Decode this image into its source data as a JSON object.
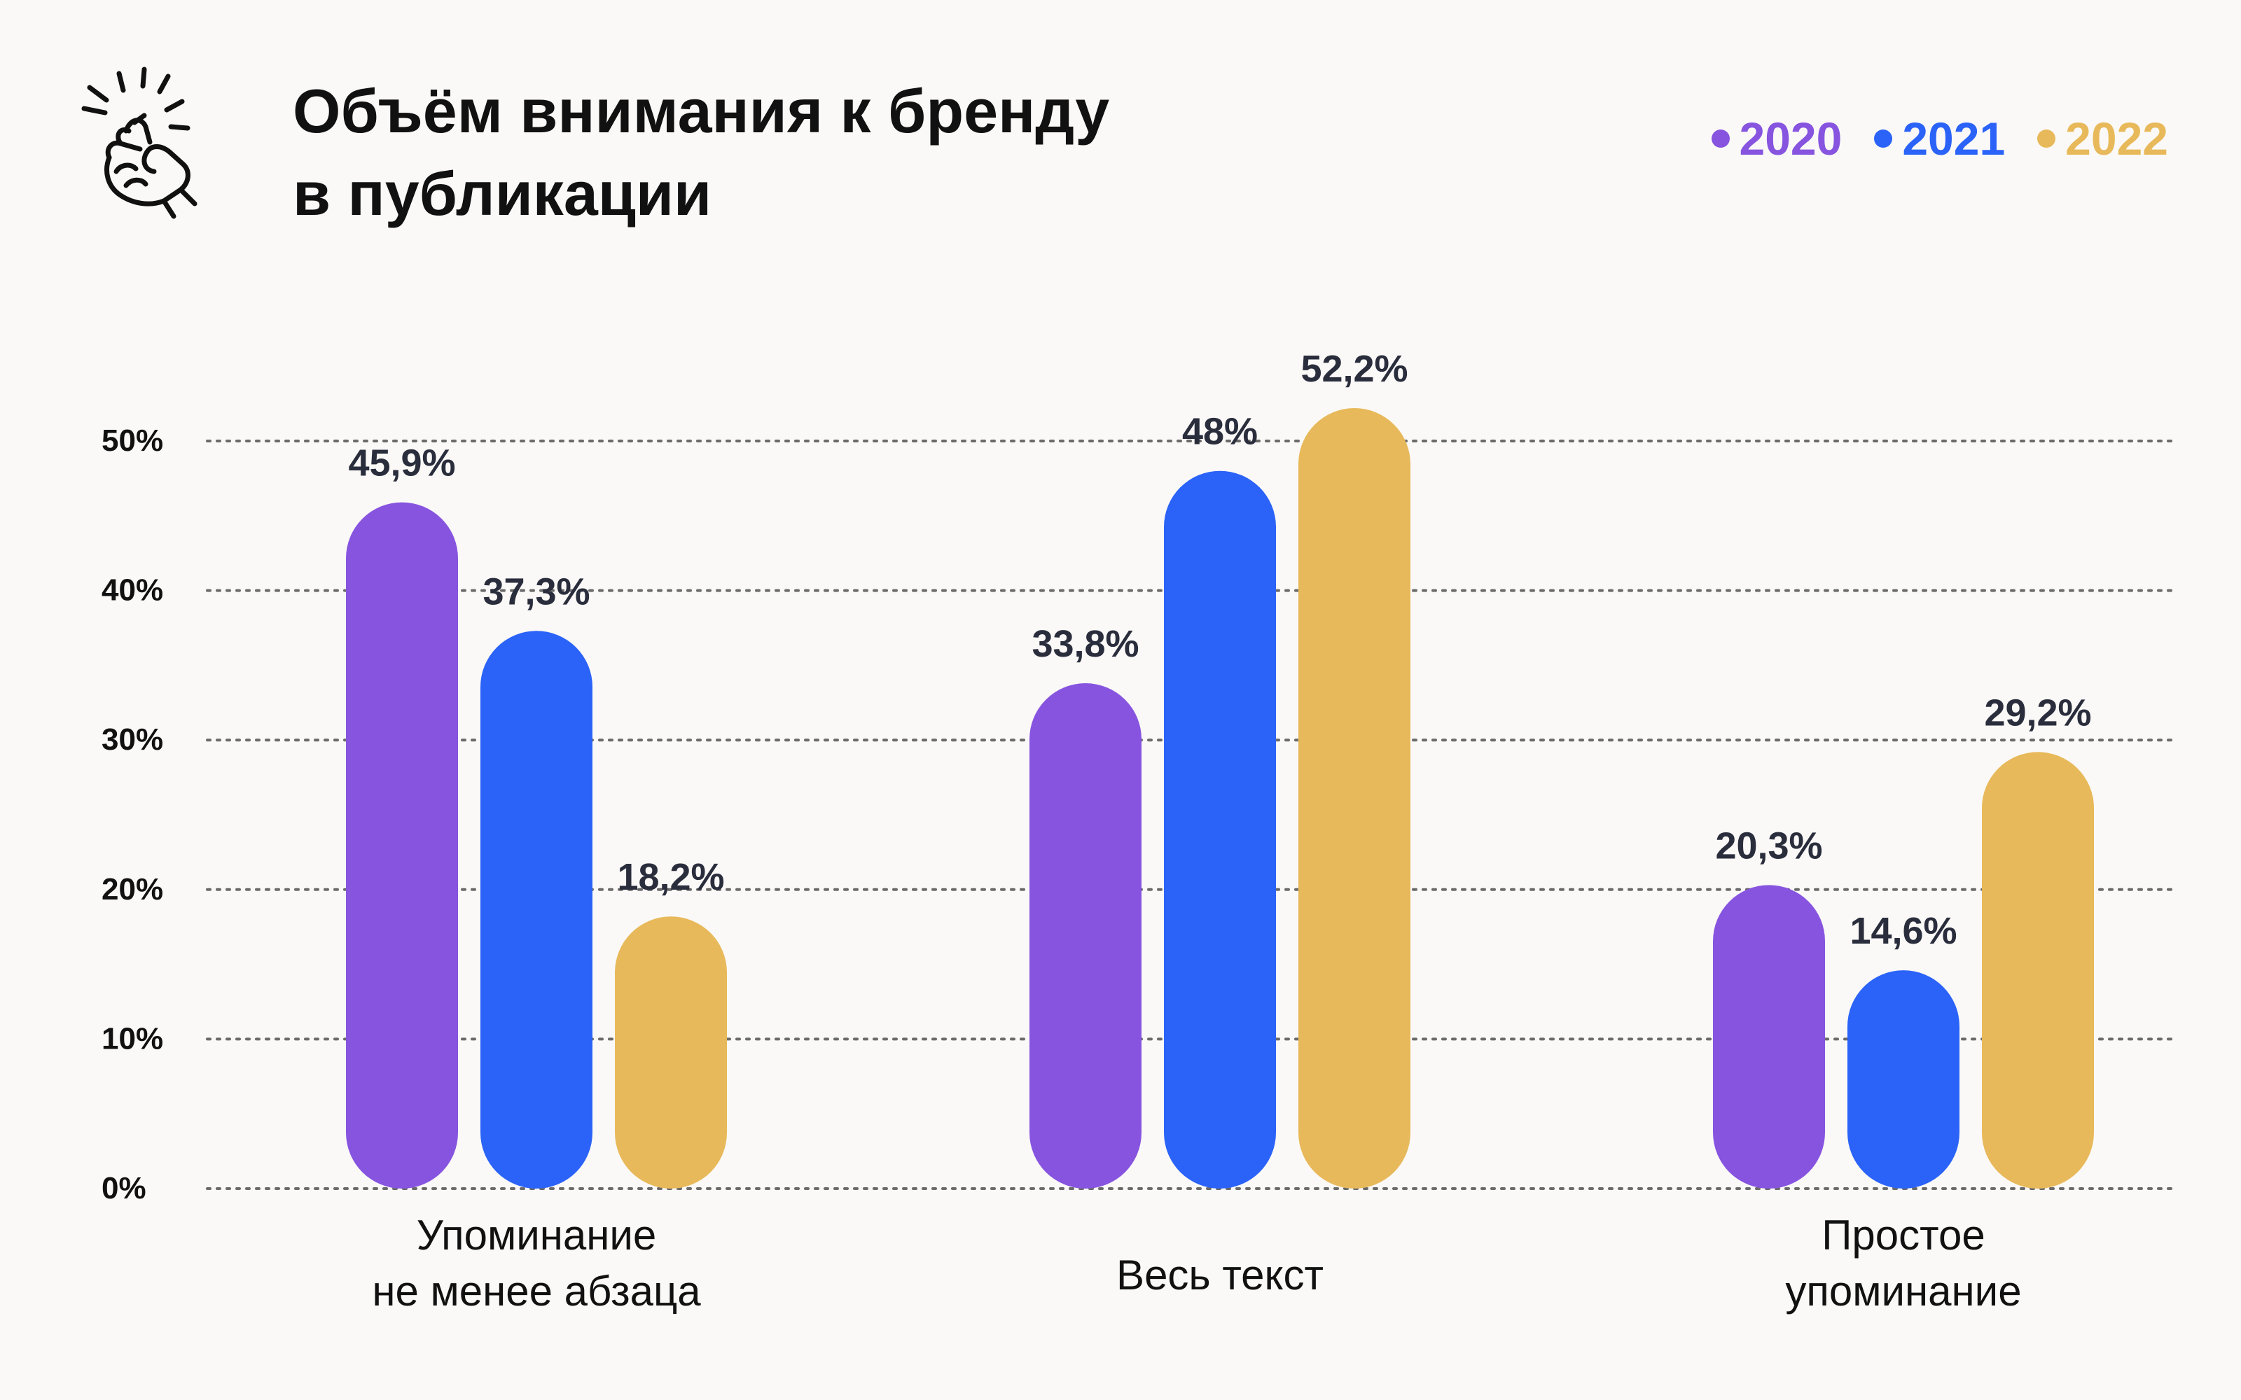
{
  "title_lines": [
    "Объём внимания к бренду",
    "в публикации"
  ],
  "icon": "snapping-fingers-icon",
  "colors": {
    "2020": "#8754e0",
    "2021": "#2b63f8",
    "2022": "#e8b95a",
    "text": "#111111",
    "value_text": "#2a2d3c",
    "grid": "#6b6b6b",
    "background": "#faf9f7"
  },
  "chart_data": {
    "type": "bar",
    "title": "Объём внимания к бренду в публикации",
    "xlabel": "",
    "ylabel": "",
    "ylim": [
      0,
      50
    ],
    "yticks": [
      0,
      10,
      20,
      30,
      40,
      50
    ],
    "ytick_labels": [
      "0%",
      "10%",
      "20%",
      "30%",
      "40%",
      "50%"
    ],
    "grid": true,
    "legend_position": "top-right",
    "categories": [
      [
        "Упоминание",
        "не менее абзаца"
      ],
      [
        "Весь текст"
      ],
      [
        "Простое",
        "упоминание"
      ]
    ],
    "series": [
      {
        "name": "2020",
        "color": "#8754e0",
        "values": [
          45.9,
          33.8,
          20.3
        ],
        "labels": [
          "45,9%",
          "33,8%",
          "20,3%"
        ]
      },
      {
        "name": "2021",
        "color": "#2b63f8",
        "values": [
          37.3,
          48,
          14.6
        ],
        "labels": [
          "37,3%",
          "48%",
          "14,6%"
        ]
      },
      {
        "name": "2022",
        "color": "#e8b95a",
        "values": [
          18.2,
          52.2,
          29.2
        ],
        "labels": [
          "18,2%",
          "52,2%",
          "29,2%"
        ]
      }
    ]
  }
}
